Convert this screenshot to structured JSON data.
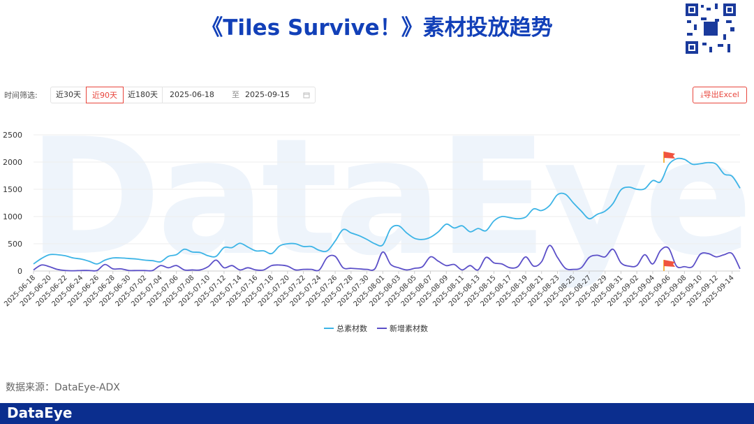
{
  "header": {
    "title": "《Tiles Survive！》素材投放趋势"
  },
  "filter": {
    "label": "时间筛选:",
    "options": [
      "近30天",
      "近90天",
      "近180天"
    ],
    "start": "2025-06-18",
    "separator": "至",
    "end": "2025-09-15"
  },
  "export_button": "导出Excel",
  "watermark": "DataEye",
  "source": "数据来源：DataEye-ADX",
  "footer_logo": "DataEye",
  "chart_data": {
    "type": "line",
    "ylim": [
      0,
      2500
    ],
    "yticks": [
      0,
      500,
      1000,
      1500,
      2000,
      2500
    ],
    "grid": true,
    "categories": [
      "2025-06-18",
      null,
      "2025-06-20",
      null,
      "2025-06-22",
      null,
      "2025-06-24",
      null,
      "2025-06-26",
      null,
      "2025-06-28",
      null,
      "2025-06-30",
      null,
      "2025-07-02",
      null,
      "2025-07-04",
      null,
      "2025-07-06",
      null,
      "2025-07-08",
      null,
      "2025-07-10",
      null,
      "2025-07-12",
      null,
      "2025-07-14",
      null,
      "2025-07-16",
      null,
      "2025-07-18",
      null,
      "2025-07-20",
      null,
      "2025-07-22",
      null,
      "2025-07-24",
      null,
      "2025-07-26",
      null,
      "2025-07-28",
      null,
      "2025-07-30",
      null,
      "2025-08-01",
      null,
      "2025-08-03",
      null,
      "2025-08-05",
      null,
      "2025-08-07",
      null,
      "2025-08-09",
      null,
      "2025-08-11",
      null,
      "2025-08-13",
      null,
      "2025-08-15",
      null,
      "2025-08-17",
      null,
      "2025-08-19",
      null,
      "2025-08-21",
      null,
      "2025-08-23",
      null,
      "2025-08-25",
      null,
      "2025-08-27",
      null,
      "2025-08-29",
      null,
      "2025-08-31",
      null,
      "2025-09-02",
      null,
      "2025-09-04",
      null,
      "2025-09-06",
      null,
      "2025-09-08",
      null,
      "2025-09-10",
      null,
      "2025-09-12",
      null,
      "2025-09-14",
      null
    ],
    "series": [
      {
        "name": "总素材数",
        "color": "#3cb4e6",
        "values": [
          130,
          230,
          300,
          300,
          280,
          240,
          220,
          180,
          130,
          200,
          240,
          240,
          230,
          220,
          200,
          190,
          170,
          270,
          300,
          400,
          350,
          340,
          280,
          270,
          430,
          430,
          510,
          440,
          370,
          370,
          320,
          460,
          500,
          500,
          450,
          450,
          380,
          370,
          550,
          760,
          700,
          650,
          580,
          500,
          480,
          780,
          830,
          700,
          600,
          580,
          620,
          720,
          860,
          790,
          830,
          720,
          780,
          740,
          920,
          1000,
          980,
          960,
          990,
          1140,
          1110,
          1200,
          1400,
          1410,
          1250,
          1100,
          960,
          1040,
          1100,
          1240,
          1490,
          1540,
          1500,
          1510,
          1660,
          1640,
          1950,
          2060,
          2050,
          1960,
          1970,
          1990,
          1960,
          1780,
          1740,
          1520
        ]
      },
      {
        "name": "新增素材数",
        "color": "#5b4fc8",
        "values": [
          20,
          110,
          80,
          30,
          10,
          5,
          10,
          10,
          10,
          120,
          40,
          40,
          10,
          10,
          10,
          10,
          100,
          60,
          100,
          20,
          20,
          20,
          80,
          200,
          60,
          100,
          20,
          60,
          20,
          20,
          100,
          110,
          90,
          20,
          30,
          30,
          20,
          250,
          270,
          60,
          50,
          40,
          30,
          40,
          350,
          120,
          60,
          20,
          50,
          80,
          260,
          180,
          100,
          120,
          20,
          100,
          20,
          250,
          150,
          130,
          60,
          80,
          260,
          90,
          170,
          470,
          250,
          50,
          30,
          60,
          250,
          290,
          260,
          400,
          150,
          90,
          100,
          300,
          130,
          380,
          420,
          90,
          80,
          80,
          310,
          320,
          260,
          300,
          320,
          40
        ]
      }
    ]
  }
}
